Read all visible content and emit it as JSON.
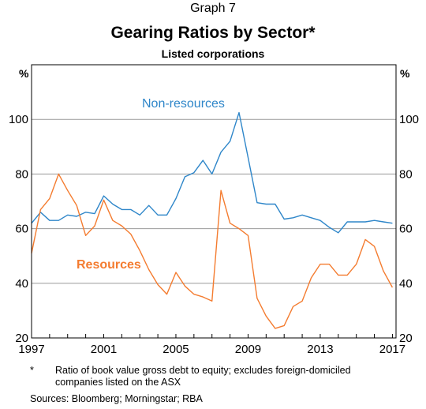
{
  "graph_label": "Graph 7",
  "title": "Gearing Ratios by Sector*",
  "subtitle": "Listed corporations",
  "footnote": {
    "marker": "*",
    "text": "Ratio of book value gross debt to equity; excludes foreign-domiciled companies listed on the ASX"
  },
  "sources": "Sources:  Bloomberg; Morningstar; RBA",
  "colors": {
    "non_resources": "#2e86c9",
    "resources": "#f47c30",
    "grid": "#999999"
  },
  "chart_data": {
    "type": "line",
    "title": "Gearing Ratios by Sector*",
    "subtitle": "Listed corporations",
    "y_unit_left": "%",
    "y_unit_right": "%",
    "xlim": [
      1997,
      2017.2
    ],
    "ylim": [
      20,
      120
    ],
    "y_ticks": [
      20,
      40,
      60,
      80,
      100
    ],
    "x_ticks": [
      1997,
      2001,
      2005,
      2009,
      2013,
      2017
    ],
    "grid": true,
    "series": [
      {
        "name": "Non-resources",
        "color": "#2e86c9",
        "x": [
          1997.0,
          1997.5,
          1998.0,
          1998.5,
          1999.0,
          1999.5,
          2000.0,
          2000.5,
          2001.0,
          2001.5,
          2002.0,
          2002.5,
          2003.0,
          2003.5,
          2004.0,
          2004.5,
          2005.0,
          2005.5,
          2006.0,
          2006.5,
          2007.0,
          2007.5,
          2008.0,
          2008.5,
          2009.0,
          2009.5,
          2010.0,
          2010.5,
          2011.0,
          2011.5,
          2012.0,
          2012.5,
          2013.0,
          2013.5,
          2014.0,
          2014.5,
          2015.0,
          2015.5,
          2016.0,
          2016.5,
          2017.0
        ],
        "values": [
          62.0,
          66.0,
          63.0,
          63.0,
          65.0,
          64.5,
          66.0,
          65.5,
          72.0,
          69.0,
          67.0,
          67.0,
          65.0,
          68.5,
          65.0,
          65.0,
          71.0,
          79.0,
          80.5,
          85.0,
          80.0,
          88.0,
          92.0,
          102.5,
          86.0,
          69.5,
          69.0,
          69.0,
          63.5,
          64.0,
          65.0,
          64.0,
          63.0,
          60.5,
          58.5,
          62.5,
          62.5,
          62.5,
          63.0,
          62.5,
          62.0
        ]
      },
      {
        "name": "Resources",
        "color": "#f47c30",
        "x": [
          1997.0,
          1997.5,
          1998.0,
          1998.5,
          1999.0,
          1999.5,
          2000.0,
          2000.5,
          2001.0,
          2001.5,
          2002.0,
          2002.5,
          2003.0,
          2003.5,
          2004.0,
          2004.5,
          2005.0,
          2005.5,
          2006.0,
          2006.5,
          2007.0,
          2007.5,
          2008.0,
          2008.5,
          2009.0,
          2009.5,
          2010.0,
          2010.5,
          2011.0,
          2011.5,
          2012.0,
          2012.5,
          2013.0,
          2013.5,
          2014.0,
          2014.5,
          2015.0,
          2015.5,
          2016.0,
          2016.5,
          2017.0
        ],
        "values": [
          51.0,
          67.0,
          71.0,
          80.0,
          74.0,
          68.5,
          57.5,
          61.0,
          70.5,
          63.0,
          61.0,
          58.0,
          52.0,
          45.0,
          39.5,
          36.0,
          44.0,
          39.0,
          36.0,
          35.0,
          33.5,
          74.0,
          62.0,
          60.0,
          57.5,
          34.5,
          28.0,
          23.5,
          24.5,
          31.5,
          33.5,
          42.0,
          47.0,
          47.0,
          43.0,
          43.0,
          47.0,
          56.0,
          53.5,
          44.5,
          38.5
        ]
      }
    ],
    "annotations": [
      {
        "text": "Non-resources",
        "series": "Non-resources"
      },
      {
        "text": "Resources",
        "series": "Resources"
      }
    ]
  }
}
